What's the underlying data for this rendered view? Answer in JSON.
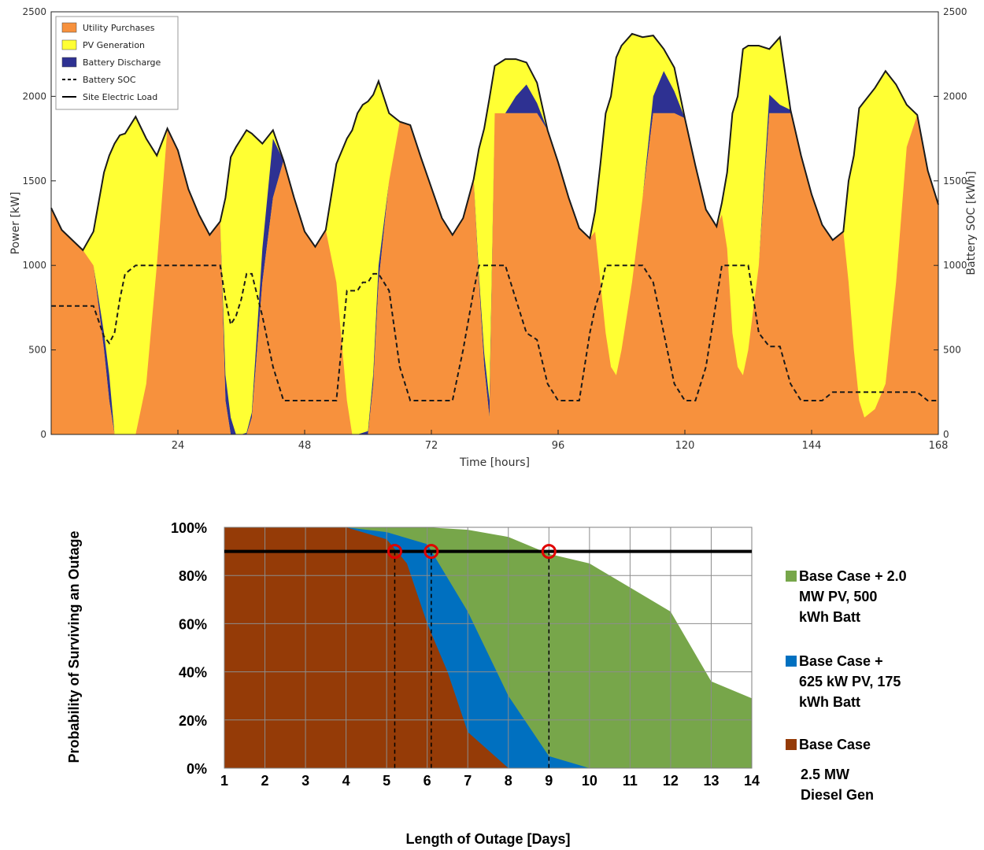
{
  "chart_data": [
    {
      "type": "area",
      "title": "",
      "xlabel": "Time [hours]",
      "ylabel": "Power [kW]",
      "y2label": "Battery SOC [kWh]",
      "xlim": [
        0,
        168
      ],
      "ylim": [
        0,
        2500
      ],
      "y2lim": [
        0,
        2500
      ],
      "xticks": [
        0,
        24,
        48,
        72,
        96,
        120,
        144,
        168
      ],
      "xtick_labels": [
        "",
        "24",
        "48",
        "72",
        "96",
        "120",
        "144",
        "168"
      ],
      "yticks": [
        0,
        500,
        1000,
        1500,
        2000,
        2500
      ],
      "ytick_labels": [
        "0",
        "500",
        "1000",
        "1500",
        "2000",
        "2500"
      ],
      "y2ticks": [
        0,
        500,
        1000,
        1500,
        2000,
        2500
      ],
      "y2tick_labels": [
        "0",
        "500",
        "1000",
        "1500",
        "2000",
        "2500"
      ],
      "grid": false,
      "legend_position": "top-left",
      "legend": [
        {
          "label": "Utility Purchases",
          "kind": "patch",
          "color": "#F7913D"
        },
        {
          "label": "PV Generation",
          "kind": "patch",
          "color": "#FFFF33"
        },
        {
          "label": "Battery Discharge",
          "kind": "patch",
          "color": "#2E3192"
        },
        {
          "label": "Battery SOC",
          "kind": "dashed-line",
          "color": "#000000"
        },
        {
          "label": "Site Electric Load",
          "kind": "line",
          "color": "#000000"
        }
      ],
      "colors": {
        "utility": "#F7913D",
        "pv": "#FFFF33",
        "battery": "#2E3192",
        "line": "#000000"
      },
      "x": [
        0,
        2,
        4,
        6,
        8,
        10,
        11,
        12,
        13,
        14,
        16,
        18,
        20,
        22,
        24,
        26,
        28,
        30,
        32,
        33,
        34,
        35,
        36,
        37,
        38,
        40,
        42,
        44,
        46,
        48,
        50,
        52,
        54,
        56,
        57,
        58,
        59,
        60,
        61,
        62,
        64,
        66,
        68,
        70,
        72,
        74,
        76,
        78,
        80,
        81,
        82,
        83,
        84,
        86,
        88,
        90,
        92,
        94,
        96,
        98,
        100,
        102,
        103,
        104,
        105,
        106,
        107,
        108,
        110,
        112,
        114,
        116,
        118,
        120,
        122,
        124,
        126,
        127,
        128,
        129,
        130,
        131,
        132,
        134,
        136,
        138,
        140,
        142,
        144,
        146,
        148,
        150,
        151,
        152,
        153,
        154,
        156,
        158,
        160,
        162,
        164,
        166,
        168
      ],
      "series": [
        {
          "name": "Site Electric Load",
          "values": [
            1340,
            1210,
            1150,
            1090,
            1200,
            1550,
            1650,
            1720,
            1770,
            1780,
            1880,
            1750,
            1650,
            1810,
            1680,
            1450,
            1300,
            1180,
            1260,
            1400,
            1640,
            1700,
            1750,
            1800,
            1780,
            1720,
            1800,
            1620,
            1400,
            1200,
            1110,
            1210,
            1600,
            1750,
            1800,
            1900,
            1950,
            1970,
            2010,
            2090,
            1900,
            1850,
            1830,
            1640,
            1460,
            1280,
            1180,
            1280,
            1510,
            1690,
            1810,
            1990,
            2180,
            2220,
            2220,
            2200,
            2080,
            1800,
            1610,
            1400,
            1220,
            1160,
            1320,
            1600,
            1900,
            2000,
            2230,
            2300,
            2370,
            2350,
            2360,
            2280,
            2170,
            1870,
            1590,
            1330,
            1230,
            1370,
            1550,
            1900,
            2000,
            2280,
            2300,
            2300,
            2280,
            2350,
            1920,
            1650,
            1420,
            1240,
            1150,
            1200,
            1500,
            1650,
            1930,
            1970,
            2050,
            2150,
            2070,
            1950,
            1890,
            1560,
            1360
          ]
        },
        {
          "name": "Utility Purchases",
          "values": [
            1340,
            1210,
            1150,
            1090,
            1000,
            500,
            200,
            0,
            0,
            0,
            0,
            300,
            1000,
            1810,
            1680,
            1450,
            1300,
            1180,
            1260,
            200,
            0,
            0,
            0,
            0,
            100,
            900,
            1400,
            1620,
            1400,
            1200,
            1110,
            1210,
            900,
            200,
            0,
            0,
            0,
            0,
            300,
            900,
            1500,
            1850,
            1830,
            1640,
            1460,
            1280,
            1180,
            1280,
            1500,
            900,
            400,
            100,
            1900,
            1900,
            1900,
            1900,
            1900,
            1800,
            1610,
            1400,
            1220,
            1160,
            1200,
            900,
            600,
            400,
            350,
            500,
            900,
            1400,
            1900,
            1900,
            1900,
            1870,
            1590,
            1330,
            1230,
            1300,
            1100,
            600,
            400,
            350,
            500,
            1000,
            1900,
            1900,
            1900,
            1650,
            1420,
            1240,
            1150,
            1200,
            900,
            500,
            200,
            100,
            150,
            300,
            900,
            1700,
            1890,
            1560,
            1360
          ]
        },
        {
          "name": "Battery Discharge",
          "values": [
            0,
            0,
            0,
            0,
            0,
            100,
            150,
            0,
            0,
            0,
            0,
            0,
            0,
            0,
            0,
            0,
            0,
            0,
            0,
            150,
            100,
            0,
            0,
            10,
            30,
            200,
            350,
            0,
            0,
            0,
            0,
            0,
            0,
            0,
            0,
            0,
            10,
            20,
            60,
            100,
            0,
            0,
            0,
            0,
            0,
            0,
            0,
            0,
            20,
            40,
            80,
            100,
            0,
            0,
            100,
            170,
            60,
            0,
            0,
            0,
            0,
            0,
            0,
            0,
            0,
            0,
            0,
            0,
            0,
            0,
            100,
            250,
            130,
            0,
            0,
            0,
            0,
            0,
            0,
            0,
            0,
            0,
            0,
            0,
            110,
            50,
            20,
            0,
            0,
            0,
            0,
            0,
            0,
            0,
            0,
            0,
            0,
            0,
            0,
            0,
            40,
            0,
            0
          ]
        },
        {
          "name": "Battery SOC",
          "values": [
            760,
            760,
            760,
            760,
            760,
            580,
            540,
            600,
            800,
            950,
            1000,
            1000,
            1000,
            1000,
            1000,
            1000,
            1000,
            1000,
            1000,
            800,
            650,
            700,
            800,
            950,
            950,
            700,
            400,
            200,
            200,
            200,
            200,
            200,
            200,
            850,
            850,
            850,
            900,
            900,
            950,
            950,
            850,
            400,
            200,
            200,
            200,
            200,
            200,
            500,
            850,
            1000,
            1000,
            1000,
            1000,
            1000,
            800,
            600,
            560,
            300,
            200,
            200,
            200,
            600,
            750,
            850,
            1000,
            1000,
            1000,
            1000,
            1000,
            1000,
            900,
            600,
            300,
            200,
            200,
            400,
            800,
            1000,
            1000,
            1000,
            1000,
            1000,
            1000,
            600,
            520,
            520,
            300,
            200,
            200,
            200,
            250,
            250,
            250,
            250,
            250,
            250,
            250,
            250,
            250,
            250,
            250,
            200,
            200
          ]
        }
      ]
    },
    {
      "type": "area",
      "title": "",
      "xlabel": "Length of Outage [Days]",
      "ylabel": "Probability of Surviving an Outage",
      "xlim": [
        1,
        14
      ],
      "ylim": [
        0,
        100
      ],
      "categories": [
        "1",
        "2",
        "3",
        "4",
        "5",
        "6",
        "7",
        "8",
        "9",
        "10",
        "11",
        "12",
        "13",
        "14"
      ],
      "ytick_labels": [
        "0%",
        "20%",
        "40%",
        "60%",
        "80%",
        "100%"
      ],
      "grid": true,
      "legend_position": "right",
      "threshold": 90,
      "markers_x": [
        5.2,
        6.1,
        9
      ],
      "colors": {
        "green": "#77A64A",
        "blue": "#0070C0",
        "brown": "#953B07",
        "line": "#000000",
        "marker": "#E00000"
      },
      "series": [
        {
          "name": "Base Case + 2.0 MW PV, 500 kWh Batt",
          "x": [
            1,
            2,
            3,
            4,
            5,
            6,
            7,
            8,
            9,
            10,
            11,
            12,
            13,
            14
          ],
          "values": [
            100,
            100,
            100,
            100,
            100,
            100,
            99,
            96,
            89,
            85,
            75,
            65,
            36,
            29
          ]
        },
        {
          "name": "Base Case + 625 kW PV, 175 kWh Batt",
          "x": [
            1,
            2,
            3,
            4,
            5,
            6,
            7,
            8,
            9,
            10
          ],
          "values": [
            100,
            100,
            100,
            100,
            98,
            93,
            65,
            30,
            5,
            0
          ]
        },
        {
          "name": "Base Case 2.5 MW Diesel Gen",
          "x": [
            1,
            2,
            3,
            4,
            5,
            5.5,
            6,
            6.5,
            7,
            8
          ],
          "values": [
            100,
            100,
            100,
            100,
            95,
            85,
            60,
            40,
            15,
            0
          ]
        }
      ],
      "legend": [
        {
          "lines": [
            "Base Case + 2.0",
            "MW PV, 500",
            "kWh Batt"
          ],
          "color": "#77A64A"
        },
        {
          "lines": [
            "Base Case +",
            "625 kW PV, 175",
            "kWh Batt"
          ],
          "color": "#0070C0"
        },
        {
          "lines": [
            "Base Case"
          ],
          "sub": [
            "2.5 MW",
            "Diesel Gen"
          ],
          "color": "#953B07"
        }
      ]
    }
  ]
}
